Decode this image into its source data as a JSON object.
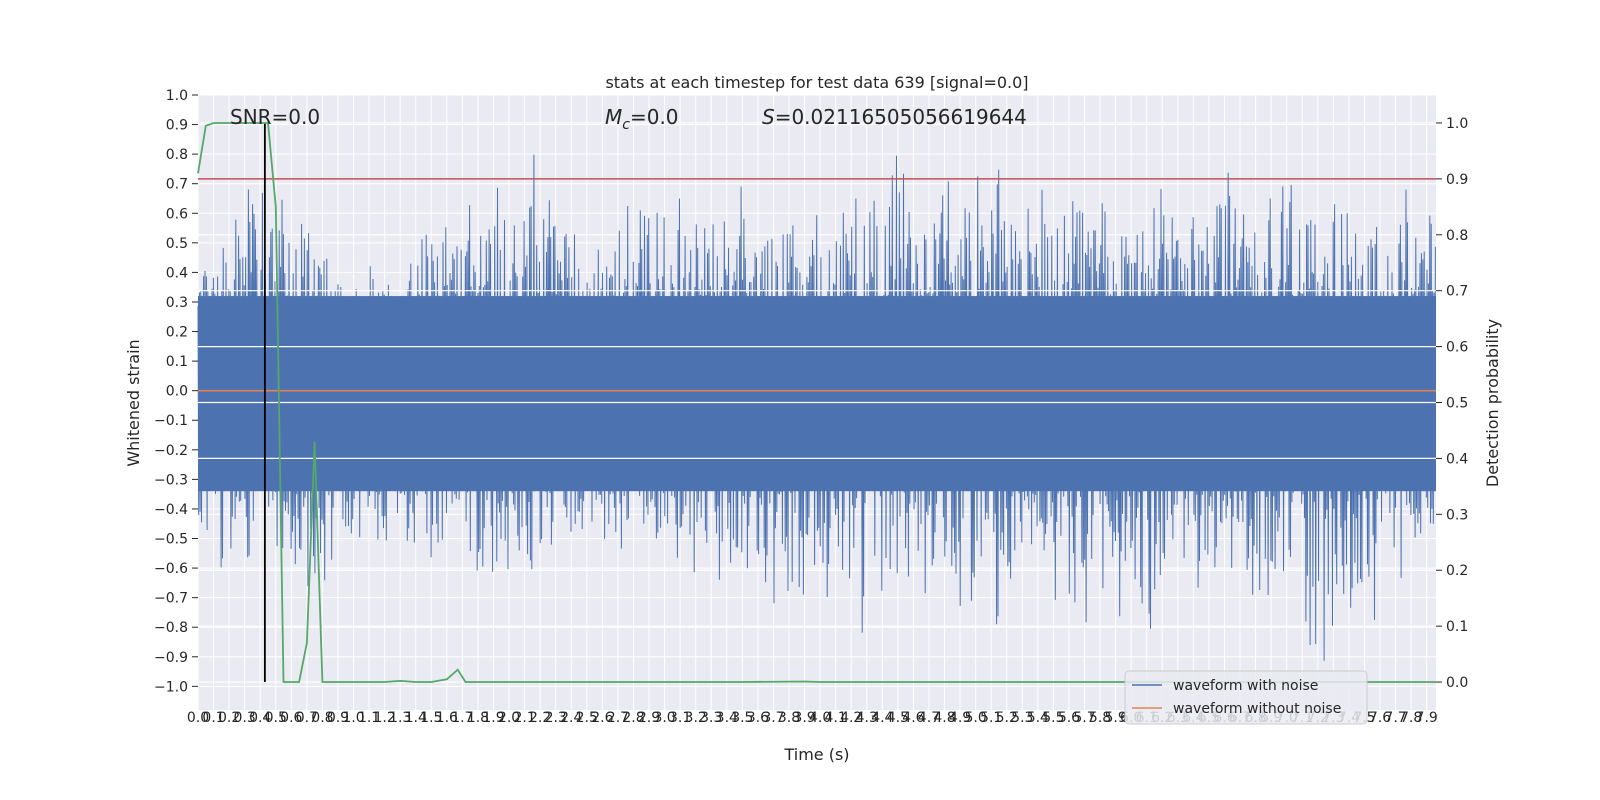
{
  "chart_data": {
    "type": "line",
    "title": "stats at each timestep for test data 639 [signal=0.0]",
    "xlabel": "Time (s)",
    "ylabel": "Whitened strain",
    "y2label": "Detection probability",
    "xlim": [
      0.0,
      7.96
    ],
    "ylim": [
      -1.08,
      1.0
    ],
    "y2lim": [
      -0.05,
      1.05
    ],
    "grid": true,
    "legend_position": "lower-right",
    "annotations": {
      "snr": "SNR=0.0",
      "mc_symbol": "M",
      "mc_sub": "c",
      "mc_value": "=0.0",
      "s_symbol": "S",
      "s_value": "=0.02116505056619644"
    },
    "xticks": [
      "0.0",
      "0.1",
      "0.2",
      "0.3",
      "0.4",
      "0.5",
      "0.6",
      "0.7",
      "0.8",
      "0.9",
      "1.0",
      "1.1",
      "1.2",
      "1.3",
      "1.4",
      "1.5",
      "1.6",
      "1.7",
      "1.8",
      "1.9",
      "2.0",
      "2.1",
      "2.2",
      "2.3",
      "2.4",
      "2.5",
      "2.6",
      "2.7",
      "2.8",
      "2.9",
      "3.0",
      "3.1",
      "3.2",
      "3.3",
      "3.4",
      "3.5",
      "3.6",
      "3.7",
      "3.8",
      "3.9",
      "4.0",
      "4.1",
      "4.2",
      "4.3",
      "4.4",
      "4.5",
      "4.6",
      "4.7",
      "4.8",
      "4.9",
      "5.0",
      "5.1",
      "5.2",
      "5.3",
      "5.4",
      "5.5",
      "5.6",
      "5.7",
      "5.8",
      "5.9",
      "6.0",
      "6.1",
      "6.2",
      "6.3",
      "6.4",
      "6.5",
      "6.6",
      "6.7",
      "6.8",
      "6.9",
      "7.0",
      "7.1",
      "7.2",
      "7.3",
      "7.4",
      "7.5",
      "7.6",
      "7.7",
      "7.8",
      "7.9"
    ],
    "yticks": [
      "1.0",
      "0.9",
      "0.8",
      "0.7",
      "0.6",
      "0.5",
      "0.4",
      "0.3",
      "0.2",
      "0.1",
      "0.0",
      "−0.1",
      "−0.2",
      "−0.3",
      "−0.4",
      "−0.5",
      "−0.6",
      "−0.7",
      "−0.8",
      "−0.9",
      "−1.0"
    ],
    "y2ticks": [
      "1.0",
      "0.9",
      "0.8",
      "0.7",
      "0.6",
      "0.5",
      "0.4",
      "0.3",
      "0.2",
      "0.1",
      "0.0"
    ],
    "threshold_line": {
      "value": 0.9,
      "axis": "y2",
      "color": "#c44e52"
    },
    "event_marker": {
      "x": 0.43,
      "color": "#000000"
    },
    "series": [
      {
        "name": "waveform with noise",
        "axis": "y",
        "color": "#4c72b0",
        "style": "dense-noise",
        "envelope_peaks": [
          [
            0.0,
            0.52,
            -0.45
          ],
          [
            0.2,
            0.6,
            -0.73
          ],
          [
            0.4,
            0.88,
            -0.58
          ],
          [
            0.6,
            0.65,
            -0.63
          ],
          [
            0.8,
            0.55,
            -0.8
          ],
          [
            1.0,
            0.4,
            -0.55
          ],
          [
            1.5,
            0.6,
            -0.65
          ],
          [
            2.05,
            0.82,
            -0.78
          ],
          [
            2.25,
            0.9,
            -0.6
          ],
          [
            2.55,
            0.5,
            -0.6
          ],
          [
            3.05,
            0.85,
            -0.62
          ],
          [
            3.9,
            0.6,
            -0.9
          ],
          [
            4.5,
            0.85,
            -0.83
          ],
          [
            5.5,
            0.83,
            -0.88
          ],
          [
            6.3,
            0.78,
            -0.84
          ],
          [
            6.8,
            0.78,
            -0.82
          ],
          [
            7.4,
            0.7,
            -0.97
          ],
          [
            7.9,
            0.75,
            -0.5
          ]
        ]
      },
      {
        "name": "waveform without noise",
        "axis": "y",
        "color": "#dd8452",
        "x": [
          0.0,
          7.96
        ],
        "y": [
          0.0,
          0.0
        ]
      },
      {
        "name": "detection probability",
        "axis": "y2",
        "color": "#55a868",
        "x": [
          0.0,
          0.05,
          0.1,
          0.15,
          0.2,
          0.25,
          0.3,
          0.35,
          0.4,
          0.45,
          0.5,
          0.55,
          0.6,
          0.65,
          0.7,
          0.75,
          0.8,
          0.85,
          1.0,
          1.2,
          1.3,
          1.4,
          1.5,
          1.6,
          1.67,
          1.72,
          2.0,
          2.5,
          3.0,
          3.5,
          3.9,
          4.0,
          5.0,
          6.0,
          7.0,
          7.96
        ],
        "y": [
          0.91,
          0.995,
          1.0,
          1.0,
          1.0,
          1.0,
          1.0,
          1.0,
          1.0,
          1.0,
          0.85,
          0.0,
          0.0,
          0.0,
          0.07,
          0.43,
          0.0,
          0.0,
          0.0,
          0.0,
          0.002,
          0.0,
          0.0,
          0.005,
          0.022,
          0.0,
          0.0,
          0.0,
          0.0,
          0.0,
          0.001,
          0.0,
          0.0,
          0.0,
          0.0,
          0.0
        ]
      }
    ]
  }
}
